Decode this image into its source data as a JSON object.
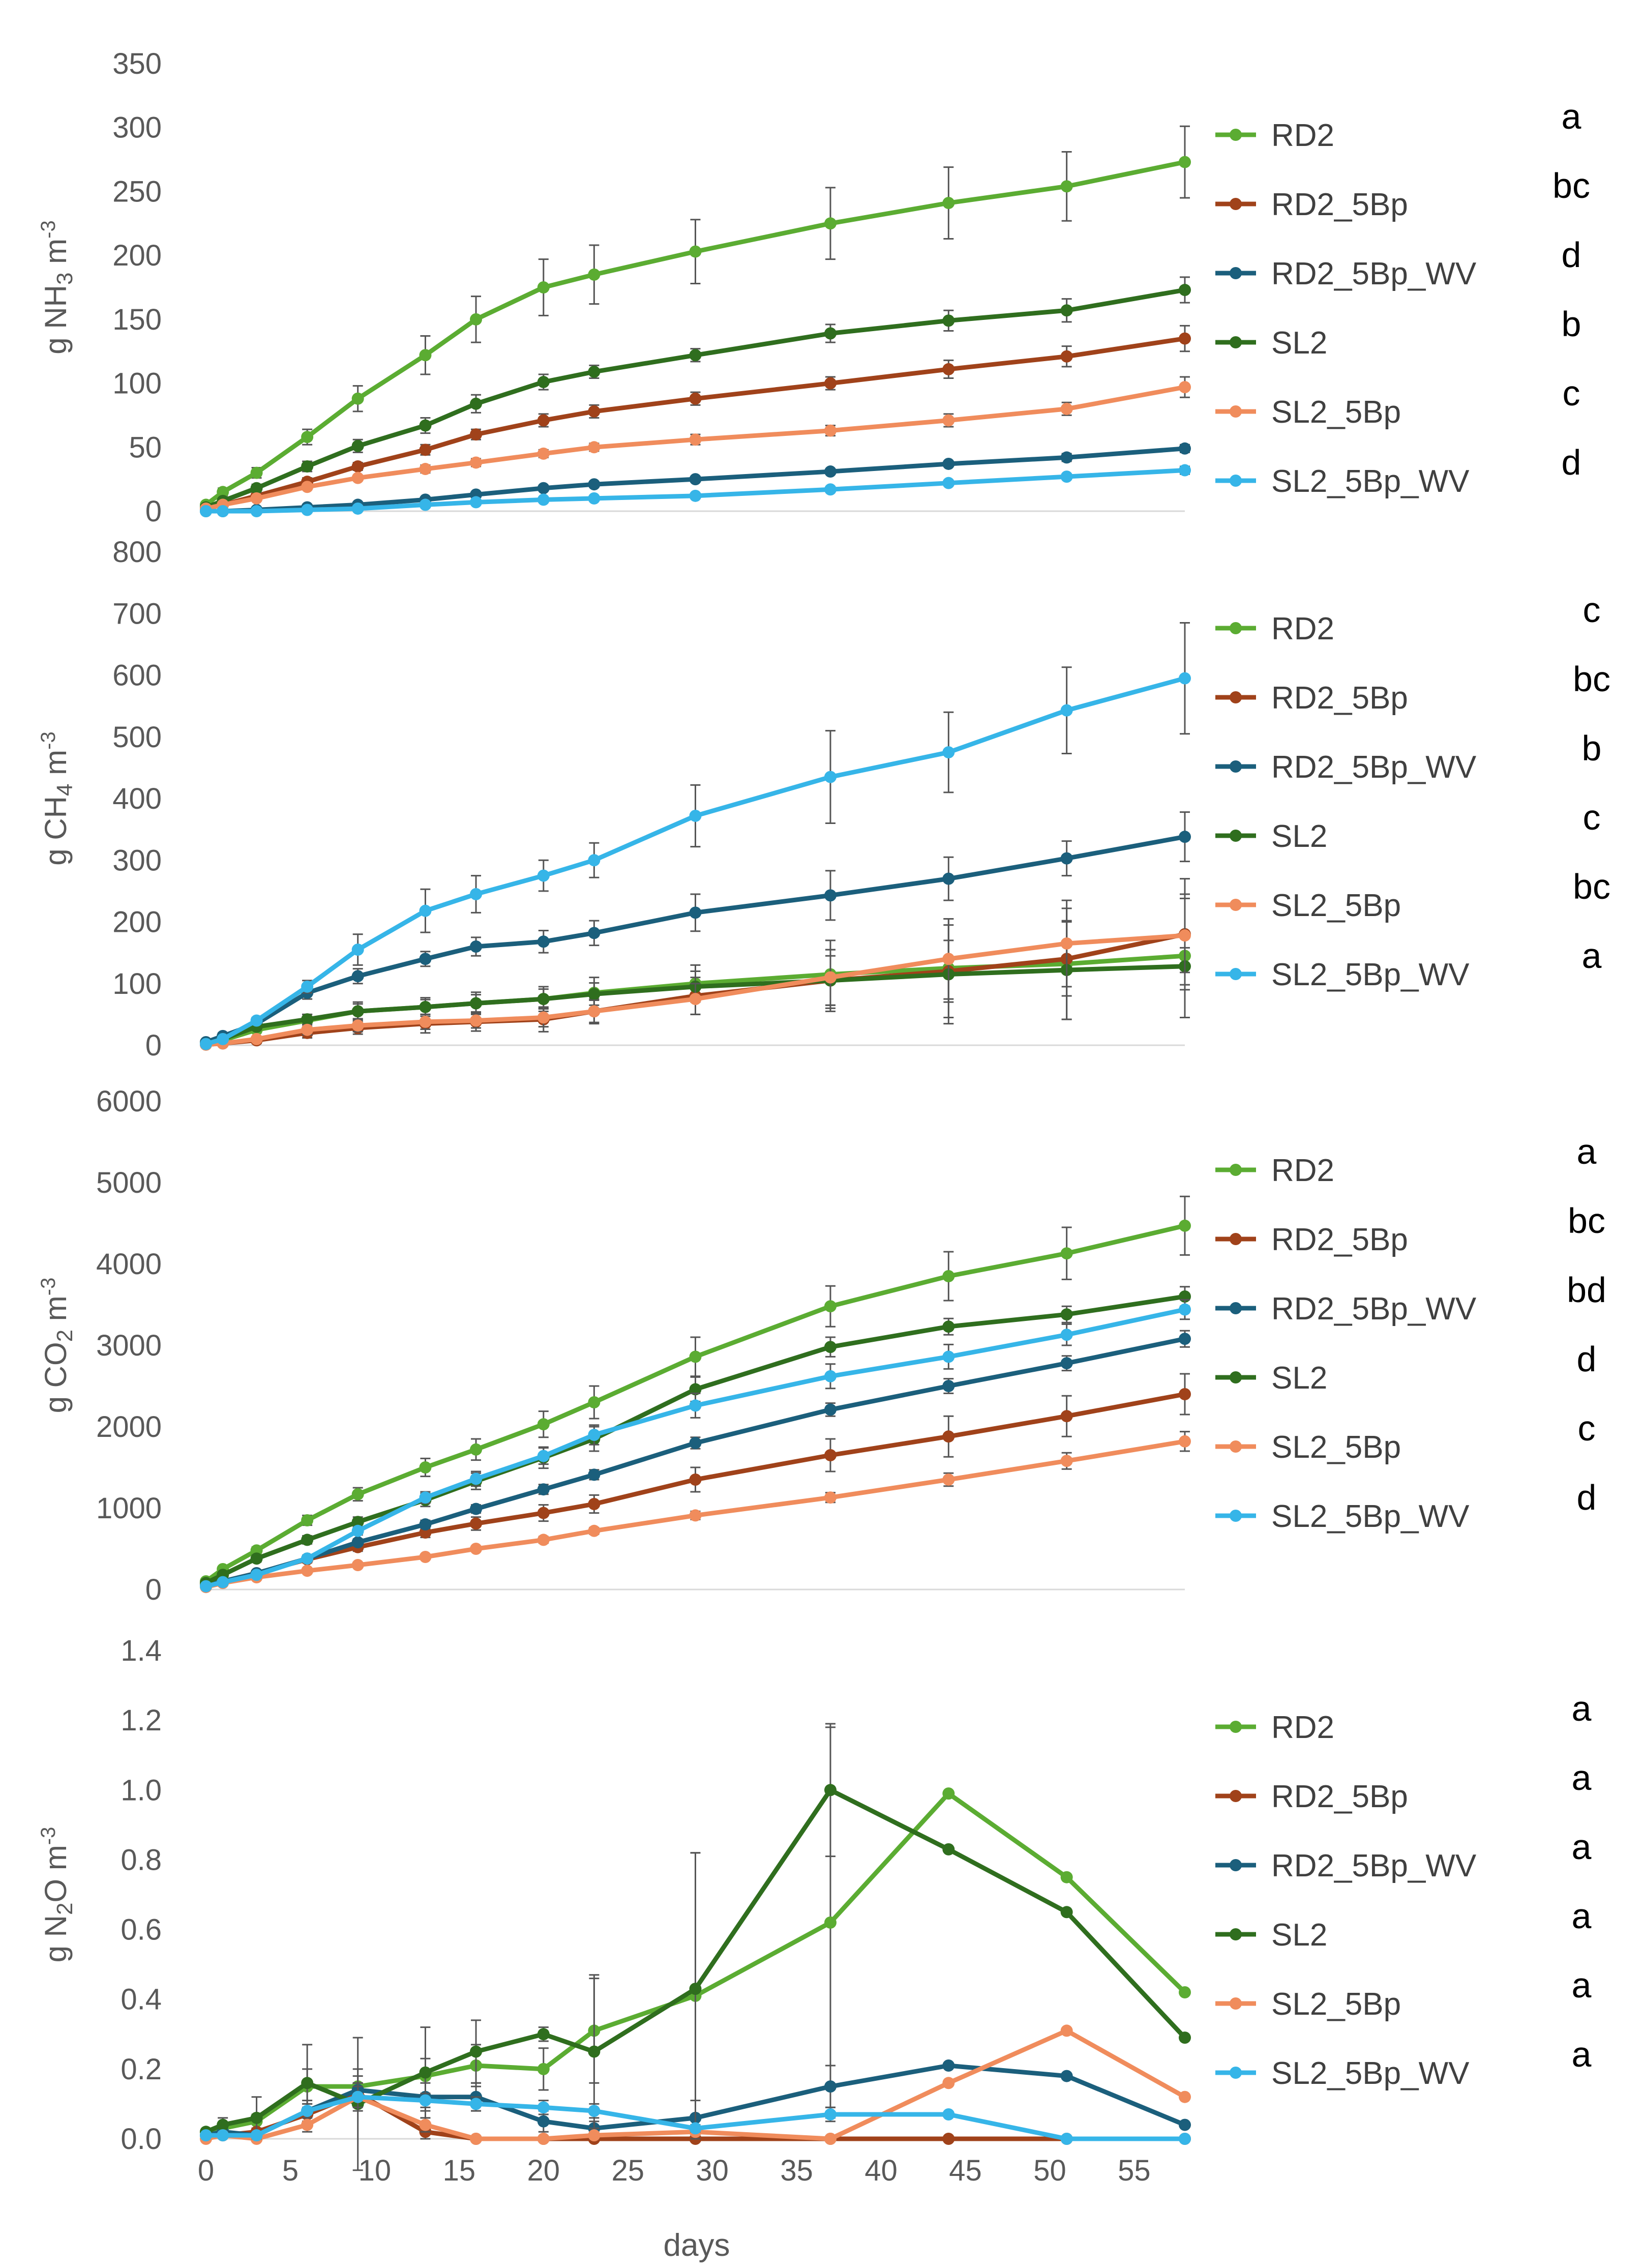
{
  "figure": {
    "x_axis": {
      "label": "days",
      "min": 0,
      "max": 58,
      "ticks": [
        0,
        5,
        10,
        15,
        20,
        25,
        30,
        35,
        40,
        45,
        50,
        55
      ]
    }
  },
  "series_styles": {
    "RD2": "#5bac32",
    "RD2_5Bp": "#a0421a",
    "RD2_5Bp_WV": "#1b5f7c",
    "SL2": "#2f6e1e",
    "SL2_5Bp": "#f08c5c",
    "SL2_5Bp_WV": "#36b5e8"
  },
  "chart_data": [
    {
      "type": "line",
      "gas": "NH3",
      "ylabel": {
        "prefix": "g NH",
        "sub": "3",
        "suffix": " m",
        "sup": "-3"
      },
      "ylim": [
        0,
        350
      ],
      "yticks": [
        0,
        50,
        100,
        150,
        200,
        250,
        300,
        350
      ],
      "x": [
        0,
        1,
        3,
        6,
        9,
        13,
        16,
        20,
        23,
        29,
        37,
        44,
        51,
        58
      ],
      "series": [
        {
          "name": "RD2",
          "significance": "a",
          "values": [
            5,
            15,
            30,
            58,
            88,
            122,
            150,
            175,
            185,
            203,
            225,
            241,
            254,
            273
          ],
          "errors": [
            2,
            3,
            4,
            6,
            10,
            15,
            18,
            22,
            23,
            25,
            28,
            28,
            27,
            28
          ]
        },
        {
          "name": "RD2_5Bp",
          "significance": "bc",
          "values": [
            2,
            5,
            12,
            23,
            35,
            48,
            60,
            71,
            78,
            88,
            100,
            111,
            121,
            135
          ],
          "errors": [
            1,
            1,
            2,
            3,
            3,
            4,
            4,
            5,
            5,
            5,
            5,
            7,
            8,
            10
          ]
        },
        {
          "name": "RD2_5Bp_WV",
          "significance": "d",
          "values": [
            0,
            0,
            1,
            3,
            5,
            9,
            13,
            18,
            21,
            25,
            31,
            37,
            42,
            49
          ],
          "errors": [
            0,
            0,
            0,
            0,
            1,
            1,
            1,
            1,
            2,
            2,
            2,
            2,
            3,
            3
          ]
        },
        {
          "name": "SL2",
          "significance": "b",
          "values": [
            3,
            8,
            18,
            35,
            51,
            67,
            84,
            101,
            109,
            122,
            139,
            149,
            157,
            173
          ],
          "errors": [
            1,
            2,
            3,
            4,
            5,
            6,
            7,
            6,
            5,
            5,
            7,
            8,
            9,
            10
          ]
        },
        {
          "name": "SL2_5Bp",
          "significance": "c",
          "values": [
            2,
            5,
            10,
            19,
            26,
            33,
            38,
            45,
            50,
            56,
            63,
            71,
            80,
            97
          ],
          "errors": [
            1,
            1,
            1,
            2,
            2,
            3,
            3,
            3,
            3,
            4,
            4,
            5,
            5,
            8
          ]
        },
        {
          "name": "SL2_5Bp_WV",
          "significance": "d",
          "values": [
            0,
            0,
            0,
            1,
            2,
            5,
            7,
            9,
            10,
            12,
            17,
            22,
            27,
            32
          ],
          "errors": [
            0,
            0,
            0,
            0,
            0,
            1,
            1,
            1,
            1,
            1,
            1,
            2,
            2,
            3
          ]
        }
      ]
    },
    {
      "type": "line",
      "gas": "CH4",
      "ylabel": {
        "prefix": "g CH",
        "sub": "4",
        "suffix": " m",
        "sup": "-3"
      },
      "ylim": [
        0,
        800
      ],
      "yticks": [
        0,
        100,
        200,
        300,
        400,
        500,
        600,
        700,
        800
      ],
      "x": [
        0,
        1,
        3,
        6,
        9,
        13,
        16,
        20,
        23,
        29,
        37,
        44,
        51,
        58
      ],
      "series": [
        {
          "name": "RD2",
          "significance": "c",
          "values": [
            3,
            8,
            25,
            40,
            55,
            62,
            68,
            75,
            85,
            100,
            115,
            125,
            132,
            145
          ],
          "errors": [
            2,
            3,
            5,
            10,
            15,
            15,
            18,
            20,
            25,
            30,
            55,
            80,
            90,
            100
          ]
        },
        {
          "name": "RD2_5Bp",
          "significance": "bc",
          "values": [
            1,
            3,
            8,
            20,
            28,
            35,
            38,
            42,
            55,
            80,
            105,
            120,
            140,
            180
          ],
          "errors": [
            1,
            2,
            5,
            8,
            10,
            15,
            15,
            20,
            20,
            30,
            40,
            50,
            60,
            90
          ]
        },
        {
          "name": "RD2_5Bp_WV",
          "significance": "b",
          "values": [
            5,
            15,
            35,
            85,
            112,
            140,
            160,
            168,
            182,
            215,
            243,
            270,
            303,
            338
          ],
          "errors": [
            2,
            5,
            8,
            10,
            12,
            12,
            15,
            18,
            20,
            30,
            40,
            35,
            28,
            40
          ]
        },
        {
          "name": "SL2",
          "significance": "c",
          "values": [
            2,
            10,
            30,
            42,
            55,
            62,
            68,
            75,
            83,
            95,
            105,
            115,
            122,
            128
          ],
          "errors": [
            1,
            3,
            5,
            8,
            12,
            12,
            14,
            16,
            18,
            25,
            50,
            80,
            80,
            30
          ]
        },
        {
          "name": "SL2_5Bp",
          "significance": "bc",
          "values": [
            1,
            3,
            10,
            25,
            32,
            38,
            40,
            45,
            55,
            75,
            110,
            140,
            165,
            178
          ],
          "errors": [
            1,
            2,
            4,
            8,
            10,
            12,
            12,
            15,
            18,
            25,
            45,
            65,
            70,
            60
          ]
        },
        {
          "name": "SL2_5Bp_WV",
          "significance": "a",
          "values": [
            2,
            10,
            40,
            95,
            155,
            218,
            245,
            275,
            300,
            372,
            435,
            475,
            543,
            595
          ],
          "errors": [
            1,
            3,
            5,
            10,
            25,
            35,
            30,
            25,
            28,
            50,
            75,
            65,
            70,
            90
          ]
        }
      ]
    },
    {
      "type": "line",
      "gas": "CO2",
      "ylabel": {
        "prefix": "g CO",
        "sub": "2",
        "suffix": " m",
        "sup": "-3"
      },
      "ylim": [
        0,
        6000
      ],
      "yticks": [
        0,
        1000,
        2000,
        3000,
        4000,
        5000,
        6000
      ],
      "x": [
        0,
        1,
        3,
        6,
        9,
        13,
        16,
        20,
        23,
        29,
        37,
        44,
        51,
        58
      ],
      "series": [
        {
          "name": "RD2",
          "significance": "a",
          "values": [
            100,
            250,
            480,
            850,
            1170,
            1500,
            1720,
            2030,
            2300,
            2860,
            3480,
            3850,
            4130,
            4470
          ],
          "errors": [
            20,
            30,
            40,
            60,
            80,
            110,
            130,
            160,
            200,
            240,
            250,
            300,
            320,
            360
          ]
        },
        {
          "name": "RD2_5Bp",
          "significance": "bc",
          "values": [
            50,
            100,
            200,
            370,
            520,
            700,
            810,
            940,
            1050,
            1350,
            1650,
            1880,
            2130,
            2400
          ],
          "errors": [
            10,
            20,
            30,
            40,
            50,
            60,
            80,
            100,
            110,
            150,
            200,
            250,
            250,
            250
          ]
        },
        {
          "name": "RD2_5Bp_WV",
          "significance": "bd",
          "values": [
            50,
            100,
            200,
            380,
            580,
            800,
            990,
            1230,
            1410,
            1800,
            2210,
            2500,
            2780,
            3080
          ],
          "errors": [
            10,
            20,
            30,
            30,
            40,
            50,
            50,
            60,
            60,
            70,
            80,
            90,
            90,
            100
          ]
        },
        {
          "name": "SL2",
          "significance": "d",
          "values": [
            80,
            180,
            380,
            610,
            830,
            1100,
            1330,
            1620,
            1850,
            2460,
            2980,
            3230,
            3380,
            3600
          ],
          "errors": [
            10,
            30,
            40,
            50,
            60,
            80,
            100,
            130,
            150,
            150,
            120,
            100,
            100,
            120
          ]
        },
        {
          "name": "SL2_5Bp",
          "significance": "c",
          "values": [
            30,
            80,
            150,
            230,
            300,
            400,
            500,
            610,
            720,
            910,
            1130,
            1350,
            1580,
            1820
          ],
          "errors": [
            10,
            10,
            20,
            20,
            20,
            30,
            30,
            40,
            40,
            50,
            60,
            80,
            100,
            120
          ]
        },
        {
          "name": "SL2_5Bp_WV",
          "significance": "d",
          "values": [
            40,
            90,
            180,
            380,
            720,
            1130,
            1360,
            1640,
            1900,
            2260,
            2620,
            2860,
            3130,
            3440
          ],
          "errors": [
            10,
            20,
            30,
            40,
            50,
            70,
            90,
            100,
            120,
            150,
            150,
            150,
            130,
            120
          ]
        }
      ]
    },
    {
      "type": "line",
      "gas": "N2O",
      "ylabel": {
        "prefix": "g N",
        "sub": "2",
        "suffix": "O m",
        "sup": "-3"
      },
      "ylim": [
        0,
        1.4
      ],
      "yticks": [
        0,
        0.2,
        0.4,
        0.6,
        0.8,
        1.0,
        1.2,
        1.4
      ],
      "ytick_labels": [
        "0.0",
        "0.2",
        "0.4",
        "0.6",
        "0.8",
        "1.0",
        "1.2",
        "1.4"
      ],
      "x": [
        0,
        1,
        3,
        6,
        9,
        13,
        16,
        20,
        23,
        29,
        37,
        44,
        51,
        58
      ],
      "series": [
        {
          "name": "RD2",
          "significance": "a",
          "values": [
            0.02,
            0.03,
            0.05,
            0.15,
            0.15,
            0.18,
            0.21,
            0.2,
            0.31,
            0.41,
            0.62,
            0.99,
            0.75,
            0.42
          ],
          "errors": [
            0,
            0.01,
            0.02,
            0.05,
            0.05,
            0.05,
            0.06,
            0.06,
            0.15,
            0.41,
            0.56,
            0,
            0,
            0
          ]
        },
        {
          "name": "RD2_5Bp",
          "significance": "a",
          "values": [
            0.01,
            0.01,
            0.02,
            0.07,
            0.13,
            0.02,
            0,
            0,
            0,
            0,
            0,
            0,
            0,
            0
          ],
          "errors": [
            0,
            0,
            0.01,
            0.02,
            0.03,
            0.02,
            0,
            0,
            0,
            0,
            0,
            0,
            0,
            0
          ]
        },
        {
          "name": "RD2_5Bp_WV",
          "significance": "a",
          "values": [
            0.01,
            0.02,
            0.01,
            0.08,
            0.14,
            0.12,
            0.12,
            0.05,
            0.03,
            0.06,
            0.15,
            0.21,
            0.18,
            0.04
          ],
          "errors": [
            0,
            0.01,
            0.01,
            0.03,
            0.04,
            0.04,
            0.04,
            0.03,
            0.02,
            0.05,
            0.06,
            0,
            0,
            0
          ]
        },
        {
          "name": "SL2",
          "significance": "a",
          "values": [
            0.02,
            0.04,
            0.06,
            0.16,
            0.1,
            0.19,
            0.25,
            0.3,
            0.25,
            0.43,
            1.0,
            0.83,
            0.65,
            0.29
          ],
          "errors": [
            0,
            0.02,
            0.06,
            0.11,
            0.19,
            0.13,
            0.09,
            0.02,
            0.22,
            0.39,
            0.19,
            0,
            0,
            0
          ]
        },
        {
          "name": "SL2_5Bp",
          "significance": "a",
          "values": [
            0,
            0.01,
            0,
            0.04,
            0.12,
            0.04,
            0,
            0,
            0.01,
            0.02,
            0,
            0.16,
            0.31,
            0.12
          ],
          "errors": [
            0,
            0,
            0,
            0.02,
            0.04,
            0.02,
            0,
            0,
            0.01,
            0.02,
            0,
            0,
            0,
            0
          ]
        },
        {
          "name": "SL2_5Bp_WV",
          "significance": "a",
          "values": [
            0.01,
            0.01,
            0.01,
            0.08,
            0.12,
            0.11,
            0.1,
            0.09,
            0.08,
            0.03,
            0.07,
            0.07,
            0,
            0
          ],
          "errors": [
            0,
            0,
            0.01,
            0.02,
            0.03,
            0.02,
            0.02,
            0.02,
            0.02,
            0.01,
            0.02,
            0,
            0,
            0
          ]
        }
      ]
    }
  ]
}
